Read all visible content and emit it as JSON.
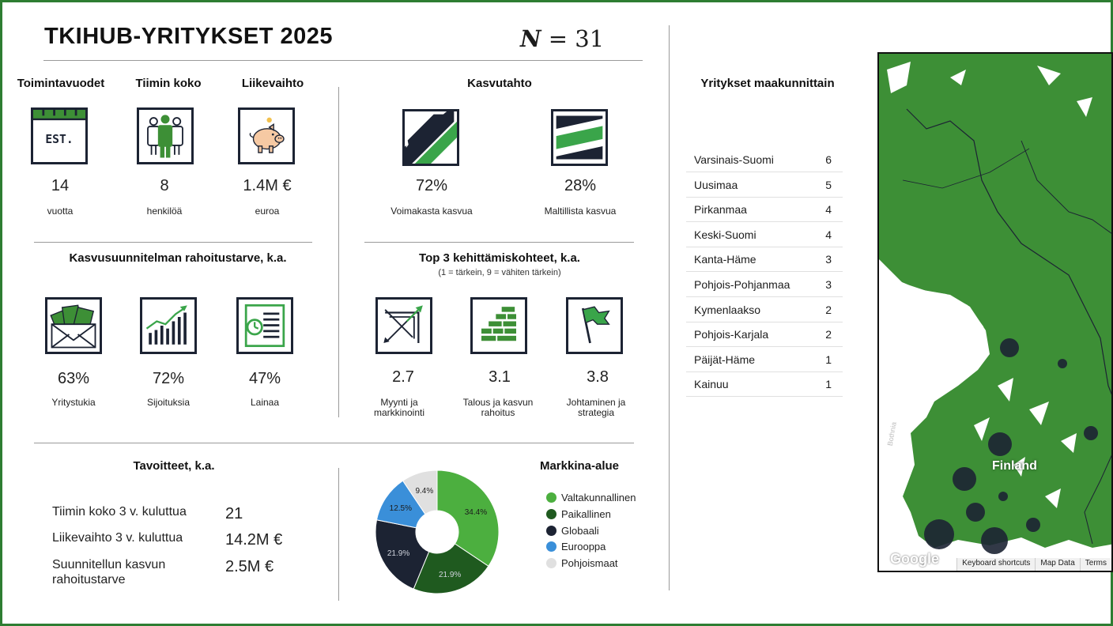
{
  "title": "TKIHUB-YRITYKSET 2025",
  "n_label": {
    "n": "N",
    "eq": " = ",
    "value": "31"
  },
  "stats": [
    {
      "header": "Toimintavuodet",
      "icon": "calendar-est-icon",
      "icon_text": "EST.",
      "value": "14",
      "unit": "vuotta"
    },
    {
      "header": "Tiimin koko",
      "icon": "team-icon",
      "value": "8",
      "unit": "henkilöä"
    },
    {
      "header": "Liikevaihto",
      "icon": "piggy-bank-icon",
      "value": "1.4M €",
      "unit": "euroa"
    }
  ],
  "growth": {
    "header": "Kasvutahto",
    "items": [
      {
        "icon": "strong-growth-icon",
        "value": "72%",
        "label": "Voimakasta kasvua"
      },
      {
        "icon": "moderate-growth-icon",
        "value": "28%",
        "label": "Maltillista kasvua"
      }
    ]
  },
  "funding": {
    "header": "Kasvusuunnitelman rahoitustarve, k.a.",
    "items": [
      {
        "icon": "money-envelope-icon",
        "value": "63%",
        "label": "Yritystukia"
      },
      {
        "icon": "investment-chart-icon",
        "value": "72%",
        "label": "Sijoituksia"
      },
      {
        "icon": "loan-document-icon",
        "value": "47%",
        "label": "Lainaa"
      }
    ]
  },
  "development": {
    "header": "Top 3 kehittämiskohteet, k.a.",
    "note": "(1 = tärkein, 9 = vähiten tärkein)",
    "items": [
      {
        "icon": "target-arrow-icon",
        "value": "2.7",
        "label1": "Myynti ja",
        "label2": "markkinointi"
      },
      {
        "icon": "bricks-icon",
        "value": "3.1",
        "label1": "Talous ja kasvun",
        "label2": "rahoitus"
      },
      {
        "icon": "flag-icon",
        "value": "3.8",
        "label1": "Johtaminen ja",
        "label2": "strategia"
      }
    ]
  },
  "goals": {
    "header": "Tavoitteet, k.a.",
    "items": [
      {
        "label": "Tiimin koko 3 v. kuluttua",
        "value": "21"
      },
      {
        "label": "Liikevaihto  3 v. kuluttua",
        "value": "14.2M €"
      },
      {
        "label": "Suunnitellun kasvun rahoitustarve",
        "value": "2.5M €"
      }
    ]
  },
  "chart_data": {
    "type": "pie",
    "title": "Markkina-alue",
    "donut": true,
    "legend_position": "right",
    "slices": [
      {
        "name": "Valtakunnallinen",
        "value": 34.4,
        "label": "34.4%",
        "color": "#4caf3f"
      },
      {
        "name": "Paikallinen",
        "value": 21.9,
        "label": "21.9%",
        "color": "#1f5a1f"
      },
      {
        "name": "Globaali",
        "value": 21.9,
        "label": "21.9%",
        "color": "#1c2333"
      },
      {
        "name": "Eurooppa",
        "value": 12.5,
        "label": "12.5%",
        "color": "#3a8fd9"
      },
      {
        "name": "Pohjoismaat",
        "value": 9.4,
        "label": "9.4%",
        "color": "#e0e0e0"
      }
    ]
  },
  "regions": {
    "header": "Yritykset maakunnittain",
    "rows": [
      {
        "name": "Varsinais-Suomi",
        "count": "6"
      },
      {
        "name": "Uusimaa",
        "count": "5"
      },
      {
        "name": "Pirkanmaa",
        "count": "4"
      },
      {
        "name": "Keski-Suomi",
        "count": "4"
      },
      {
        "name": "Kanta-Häme",
        "count": "3"
      },
      {
        "name": "Pohjois-Pohjanmaa",
        "count": "3"
      },
      {
        "name": "Kymenlaakso",
        "count": "2"
      },
      {
        "name": "Pohjois-Karjala",
        "count": "2"
      },
      {
        "name": "Päijät-Häme",
        "count": "1"
      },
      {
        "name": "Kainuu",
        "count": "1"
      }
    ]
  },
  "map": {
    "country_label": "Finland",
    "sea_label": "Bothnia",
    "google": "Google",
    "footer": [
      "Keyboard shortcuts",
      "Map Data",
      "Terms"
    ],
    "land_color": "#3d8f36",
    "bubble_color": "#1c2333"
  },
  "colors": {
    "accent_green": "#2e7d32",
    "icon_border": "#1c2333"
  }
}
